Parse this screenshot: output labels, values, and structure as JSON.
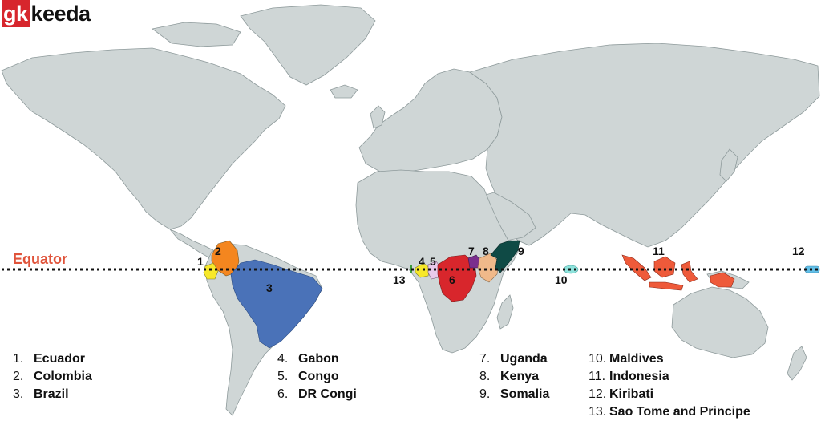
{
  "logo": {
    "part1": "gk",
    "part2": "keeda",
    "part1_color": "#d7262d"
  },
  "equator_label": "Equator",
  "colors": {
    "ocean": "#ffffff",
    "land": "#cfd6d6",
    "border": "#8e9a9b",
    "equator_line": "#111111",
    "equator_label": "#e0533a"
  },
  "map_labels": [
    "1",
    "2",
    "3",
    "4",
    "5",
    "6",
    "7",
    "8",
    "9",
    "10",
    "11",
    "12",
    "13"
  ],
  "countries": [
    {
      "num": "1.",
      "name": "Ecuador",
      "color": "#f7e82a"
    },
    {
      "num": "2.",
      "name": "Colombia",
      "color": "#f4861f"
    },
    {
      "num": "3.",
      "name": "Brazil",
      "color": "#4a72b8"
    },
    {
      "num": "4.",
      "name": "Gabon",
      "color": "#f7e82a"
    },
    {
      "num": "5.",
      "name": "Congo",
      "color": "#e8c9ea"
    },
    {
      "num": "6.",
      "name": "DR Congi",
      "color": "#d8262c"
    },
    {
      "num": "7.",
      "name": "Uganda",
      "color": "#7b2f8e"
    },
    {
      "num": "8.",
      "name": "Kenya",
      "color": "#f0b98a"
    },
    {
      "num": "9.",
      "name": "Somalia",
      "color": "#0f4a45"
    },
    {
      "num": "10.",
      "name": "Maldives",
      "color": "#8ee3dc"
    },
    {
      "num": "11.",
      "name": "Indonesia",
      "color": "#ee5a3a"
    },
    {
      "num": "12.",
      "name": "Kiribati",
      "color": "#62bfe8"
    },
    {
      "num": "13.",
      "name": "Sao Tome and Principe",
      "color": "#3a9a3a"
    }
  ]
}
